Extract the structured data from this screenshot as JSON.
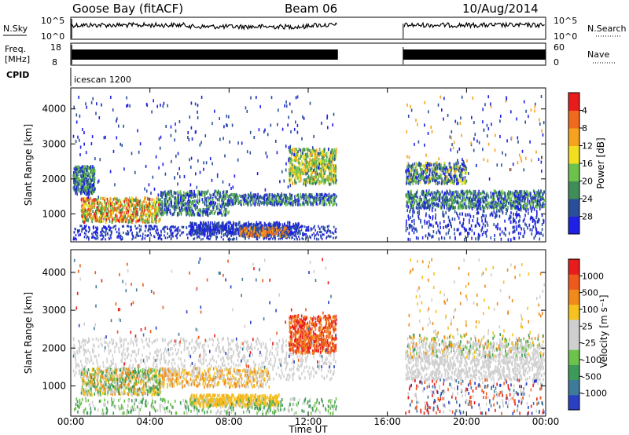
{
  "header": {
    "station": "Goose Bay (fitACF)",
    "beam": "Beam 06",
    "date": "10/Aug/2014"
  },
  "status_panel": {
    "nsky_label": "N.Sky",
    "nsearch_label": "N.Search",
    "noise_ticks_left": [
      "10^5",
      "10^0"
    ],
    "noise_ticks_right": [
      "10^5",
      "10^0"
    ],
    "freq_label_1": "Freq.",
    "freq_label_2": "[MHz]",
    "freq_ticks": [
      "18",
      "8"
    ],
    "nave_label": "Nave",
    "nave_ticks": [
      "60",
      "0"
    ],
    "cpid_label": "CPID",
    "cpid_value": "icescan 1200"
  },
  "chart_data": {
    "type": "heatmap",
    "x_ticks": [
      "00:00",
      "04:00",
      "08:00",
      "12:00",
      "16:00",
      "20:00",
      "00:00"
    ],
    "xlabel": "Time UT",
    "x_range_hours": [
      0,
      24
    ],
    "data_gap_hours": [
      13.5,
      16.8
    ],
    "panels": [
      {
        "name": "power",
        "ylabel": "Slant Range [km]",
        "y_ticks": [
          1000,
          2000,
          3000,
          4000
        ],
        "ylim": [
          200,
          4600
        ],
        "colorbar_label": "Power [dB]",
        "colorbar_ticks": [
          "4",
          "8",
          "12",
          "16",
          "20",
          "24",
          "28"
        ],
        "colors": [
          "#1f1fe6",
          "#2a4f9a",
          "#3f8e5a",
          "#6cc24a",
          "#f2e020",
          "#f5a21f",
          "#ef6a1c",
          "#e81c1c"
        ]
      },
      {
        "name": "velocity",
        "ylabel": "Slant Range [km]",
        "y_ticks": [
          1000,
          2000,
          3000,
          4000
        ],
        "ylim": [
          200,
          4600
        ],
        "colorbar_label": "Velocity [m s⁻¹]",
        "colorbar_ticks": [
          "1000",
          "500",
          "100",
          "25",
          "-25",
          "-100",
          "-500",
          "-1000"
        ],
        "colors": [
          "#2a3fc2",
          "#3e7a9a",
          "#3e9a5a",
          "#6cc24a",
          "#cfcfcf",
          "#cfcfcf",
          "#f5c21f",
          "#f08a1c",
          "#ef5a1c",
          "#e81c1c"
        ]
      }
    ]
  }
}
